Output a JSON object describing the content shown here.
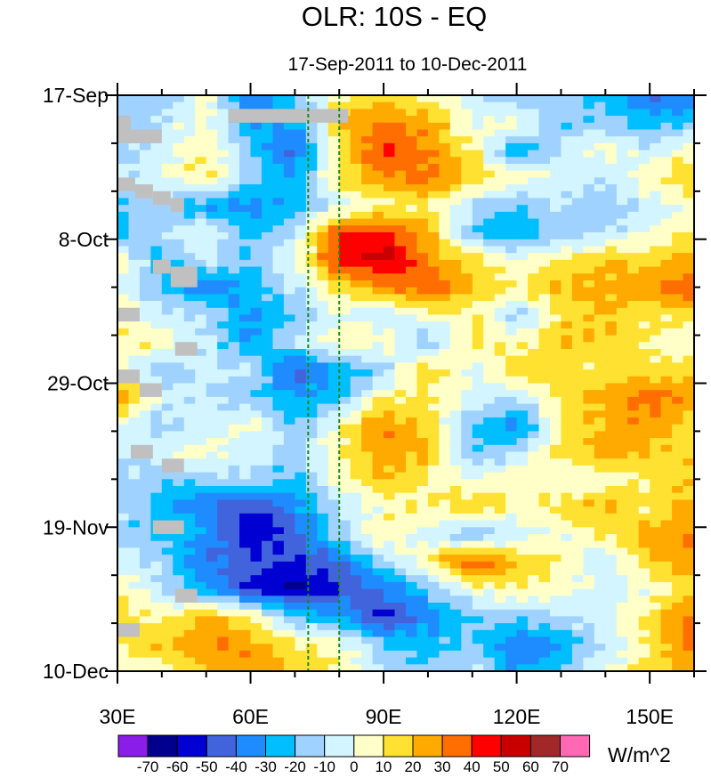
{
  "chart_data": {
    "type": "heatmap",
    "title": "OLR: 10S - EQ",
    "subtitle": "17-Sep-2011 to 10-Dec-2011",
    "xlabel": "",
    "ylabel": "",
    "x_unit": "degrees east longitude",
    "y_unit": "days since 17-Sep-2011",
    "xlim": [
      30,
      160
    ],
    "ylim": [
      0,
      84
    ],
    "x_ticks": [
      {
        "value": 30,
        "label": "30E"
      },
      {
        "value": 60,
        "label": "60E"
      },
      {
        "value": 90,
        "label": "90E"
      },
      {
        "value": 120,
        "label": "120E"
      },
      {
        "value": 150,
        "label": "150E"
      }
    ],
    "x_minor_step": 10,
    "y_ticks": [
      {
        "value": 0,
        "label": "17-Sep"
      },
      {
        "value": 21,
        "label": "8-Oct"
      },
      {
        "value": 42,
        "label": "29-Oct"
      },
      {
        "value": 63,
        "label": "19-Nov"
      },
      {
        "value": 84,
        "label": "10-Dec"
      }
    ],
    "y_minor_step": 7,
    "lon": [
      30,
      40,
      50,
      60,
      70,
      80,
      90,
      100,
      110,
      120,
      130,
      140,
      150,
      160
    ],
    "day": [
      0,
      4,
      8,
      12,
      16,
      20,
      24,
      28,
      32,
      36,
      40,
      44,
      48,
      52,
      56,
      60,
      64,
      68,
      72,
      76,
      80,
      84
    ],
    "values": [
      [
        -15,
        -15,
        5,
        -40,
        -20,
        5,
        15,
        5,
        -5,
        -20,
        -10,
        -30,
        -40,
        -40
      ],
      [
        -20,
        -10,
        5,
        -30,
        -30,
        25,
        30,
        25,
        0,
        5,
        -20,
        -15,
        -25,
        -20
      ],
      [
        -15,
        -5,
        10,
        -20,
        -45,
        10,
        45,
        30,
        10,
        -30,
        -10,
        5,
        -10,
        10
      ],
      [
        -10,
        0,
        15,
        -15,
        -30,
        15,
        30,
        35,
        20,
        5,
        0,
        -10,
        10,
        20
      ],
      [
        -20,
        -15,
        -30,
        -35,
        -25,
        -5,
        5,
        10,
        -10,
        -20,
        -10,
        -20,
        -5,
        0
      ],
      [
        -25,
        -10,
        0,
        -25,
        -10,
        40,
        45,
        25,
        -20,
        -30,
        -15,
        -10,
        0,
        10
      ],
      [
        5,
        -25,
        -5,
        -20,
        0,
        45,
        55,
        30,
        15,
        0,
        10,
        20,
        15,
        25
      ],
      [
        0,
        -20,
        -40,
        -25,
        -10,
        15,
        30,
        40,
        20,
        10,
        20,
        25,
        30,
        40
      ],
      [
        15,
        -10,
        -10,
        -35,
        -20,
        0,
        -10,
        5,
        10,
        -15,
        15,
        20,
        10,
        20
      ],
      [
        5,
        10,
        -10,
        -30,
        -10,
        10,
        5,
        -20,
        15,
        5,
        20,
        20,
        10,
        0
      ],
      [
        10,
        -20,
        -5,
        -10,
        -45,
        -30,
        -15,
        20,
        -5,
        20,
        15,
        10,
        15,
        10
      ],
      [
        30,
        -5,
        -10,
        -20,
        -30,
        -25,
        10,
        10,
        0,
        -10,
        15,
        25,
        35,
        30
      ],
      [
        0,
        -15,
        -5,
        5,
        -20,
        5,
        30,
        15,
        -20,
        -40,
        10,
        20,
        30,
        10
      ],
      [
        -10,
        0,
        5,
        -5,
        -15,
        10,
        30,
        20,
        -20,
        -10,
        15,
        25,
        20,
        15
      ],
      [
        -10,
        -20,
        -15,
        -10,
        -25,
        5,
        20,
        10,
        0,
        10,
        0,
        5,
        10,
        20
      ],
      [
        -10,
        -25,
        -40,
        -50,
        -35,
        -10,
        5,
        10,
        20,
        5,
        15,
        25,
        10,
        25
      ],
      [
        -15,
        -20,
        -30,
        -60,
        -45,
        -15,
        10,
        -5,
        -20,
        -5,
        0,
        10,
        25,
        30
      ],
      [
        0,
        -15,
        -40,
        -45,
        -50,
        -40,
        -15,
        10,
        40,
        20,
        10,
        -10,
        20,
        30
      ],
      [
        10,
        -10,
        -30,
        -55,
        -65,
        -50,
        -40,
        -20,
        5,
        10,
        5,
        -5,
        0,
        20
      ],
      [
        15,
        5,
        25,
        10,
        -20,
        -30,
        -55,
        -35,
        -20,
        -15,
        -10,
        -5,
        15,
        30
      ],
      [
        10,
        20,
        30,
        25,
        10,
        5,
        -20,
        -25,
        -15,
        -40,
        -30,
        -10,
        10,
        40
      ],
      [
        0,
        5,
        20,
        30,
        20,
        10,
        -10,
        -20,
        -10,
        -30,
        -20,
        0,
        15,
        20
      ]
    ],
    "missing_regions": [
      [
        30,
        33,
        3,
        7
      ],
      [
        33,
        40,
        5,
        7
      ],
      [
        55,
        82,
        2,
        4
      ],
      [
        30,
        34,
        12,
        14
      ],
      [
        34,
        38,
        13,
        15
      ],
      [
        38,
        42,
        14,
        16
      ],
      [
        42,
        45,
        15,
        17
      ],
      [
        38,
        42,
        24,
        26
      ],
      [
        42,
        48,
        25,
        28
      ],
      [
        30,
        35,
        31,
        33
      ],
      [
        43,
        48,
        36,
        38
      ],
      [
        30,
        35,
        40,
        42
      ],
      [
        35,
        40,
        42,
        44
      ],
      [
        33,
        38,
        51,
        53
      ],
      [
        40,
        45,
        53,
        55
      ],
      [
        38,
        45,
        62,
        64
      ],
      [
        43,
        48,
        72,
        74
      ],
      [
        30,
        35,
        77,
        79
      ]
    ],
    "missing_color": "#c0c0c0",
    "reference_lines": {
      "lon": [
        73,
        80
      ],
      "style": "dashed",
      "color": "#1a8a1a"
    },
    "colorbar": {
      "levels": [
        -70,
        -60,
        -50,
        -40,
        -30,
        -20,
        -10,
        0,
        10,
        20,
        30,
        40,
        50,
        60,
        70
      ],
      "level_labels": [
        "-70",
        "-60",
        "-50",
        "-40",
        "-30",
        "-20",
        "-10",
        "0",
        "10",
        "20",
        "30",
        "40",
        "50",
        "60",
        "70"
      ],
      "colors": [
        "#8a1ee8",
        "#00008c",
        "#0000d2",
        "#4164dc",
        "#1e8cff",
        "#00beff",
        "#a0d2ff",
        "#d2f5ff",
        "#ffffc8",
        "#ffe132",
        "#ffaa00",
        "#ff6e00",
        "#ff0000",
        "#c80000",
        "#a02828",
        "#ff69b4"
      ],
      "unit": "W/m^2",
      "placement": "bottom"
    }
  }
}
